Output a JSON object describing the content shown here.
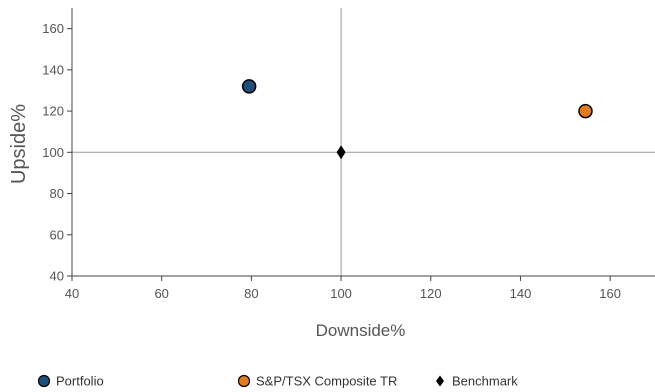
{
  "chart_data": {
    "type": "scatter",
    "xlabel": "Downside%",
    "ylabel": "Upside%",
    "xlim": [
      40,
      170
    ],
    "ylim": [
      40,
      170
    ],
    "x_ticks": [
      40,
      60,
      80,
      100,
      120,
      140,
      160
    ],
    "y_ticks": [
      40,
      60,
      80,
      100,
      120,
      140,
      160
    ],
    "reference_lines": {
      "x": 100,
      "y": 100
    },
    "grid": false,
    "legend_position": "bottom",
    "series": [
      {
        "name": "Portfolio",
        "marker": "circle",
        "color": "#1f4e79",
        "points": [
          {
            "x": 79.5,
            "y": 132
          }
        ]
      },
      {
        "name": "S&P/TSX Composite TR",
        "marker": "circle",
        "color": "#e07b1f",
        "points": [
          {
            "x": 154.5,
            "y": 120
          }
        ]
      },
      {
        "name": "Benchmark",
        "marker": "diamond",
        "color": "#000000",
        "points": [
          {
            "x": 100,
            "y": 100
          }
        ]
      }
    ]
  }
}
